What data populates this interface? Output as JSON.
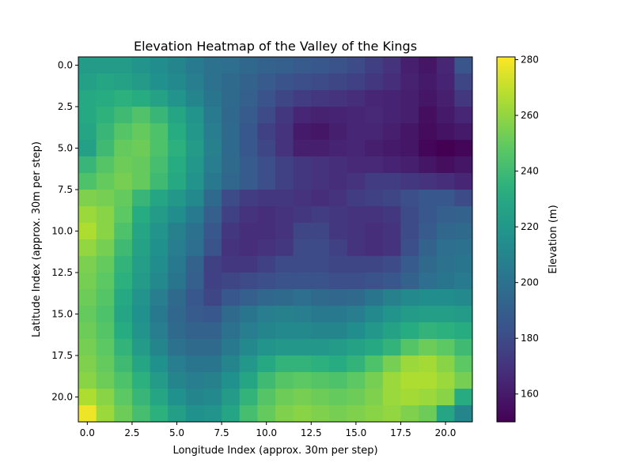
{
  "chart_data": {
    "type": "heatmap",
    "title": "Elevation Heatmap of the Valley of the Kings",
    "xlabel": "Longitude Index (approx. 30m per step)",
    "ylabel": "Latitude Index (approx. 30m per step)",
    "colorbar_label": "Elevation (m)",
    "colormap": "viridis",
    "value_range": [
      150,
      281
    ],
    "x_ticks": [
      0,
      2.5,
      5,
      7.5,
      10,
      12.5,
      15,
      17.5,
      20
    ],
    "x_tick_labels": [
      "0.0",
      "2.5",
      "5.0",
      "7.5",
      "10.0",
      "12.5",
      "15.0",
      "17.5",
      "20.0"
    ],
    "y_ticks": [
      0,
      2.5,
      5,
      7.5,
      10,
      12.5,
      15,
      17.5,
      20
    ],
    "y_tick_labels": [
      "0.0",
      "2.5",
      "5.0",
      "7.5",
      "10.0",
      "12.5",
      "15.0",
      "17.5",
      "20.0"
    ],
    "colorbar_ticks": [
      160,
      180,
      200,
      220,
      240,
      260,
      280
    ],
    "colorbar_tick_labels": [
      "160",
      "180",
      "200",
      "220",
      "240",
      "260",
      "280"
    ],
    "rows": 22,
    "cols": 22,
    "values": [
      [
        222,
        222,
        222,
        218,
        214,
        210,
        205,
        200,
        198,
        195,
        192,
        190,
        188,
        186,
        184,
        180,
        175,
        170,
        162,
        158,
        165,
        185
      ],
      [
        225,
        228,
        226,
        222,
        216,
        212,
        206,
        200,
        196,
        192,
        188,
        184,
        182,
        180,
        178,
        176,
        172,
        168,
        163,
        160,
        164,
        178
      ],
      [
        230,
        232,
        234,
        232,
        226,
        218,
        210,
        202,
        196,
        190,
        184,
        178,
        174,
        172,
        170,
        168,
        165,
        164,
        162,
        158,
        162,
        172
      ],
      [
        230,
        235,
        240,
        245,
        238,
        228,
        218,
        205,
        195,
        188,
        180,
        172,
        165,
        163,
        164,
        165,
        166,
        164,
        162,
        155,
        160,
        165
      ],
      [
        228,
        238,
        246,
        250,
        244,
        232,
        220,
        206,
        196,
        186,
        176,
        170,
        160,
        158,
        162,
        165,
        165,
        162,
        158,
        154,
        157,
        160
      ],
      [
        225,
        240,
        250,
        252,
        244,
        234,
        222,
        208,
        196,
        186,
        178,
        170,
        162,
        162,
        164,
        165,
        162,
        160,
        158,
        152,
        150,
        152
      ],
      [
        238,
        246,
        252,
        250,
        242,
        232,
        220,
        206,
        196,
        188,
        182,
        176,
        172,
        170,
        168,
        166,
        166,
        164,
        162,
        158,
        155,
        158
      ],
      [
        244,
        250,
        254,
        250,
        240,
        230,
        218,
        204,
        194,
        188,
        182,
        176,
        172,
        170,
        168,
        170,
        174,
        174,
        172,
        170,
        168,
        165
      ],
      [
        256,
        254,
        250,
        238,
        228,
        220,
        212,
        196,
        180,
        174,
        172,
        172,
        170,
        168,
        170,
        174,
        176,
        178,
        182,
        186,
        186,
        180
      ],
      [
        262,
        258,
        248,
        232,
        222,
        214,
        205,
        190,
        176,
        170,
        168,
        170,
        172,
        174,
        172,
        170,
        170,
        172,
        180,
        186,
        190,
        192
      ],
      [
        266,
        258,
        244,
        228,
        218,
        208,
        200,
        186,
        172,
        168,
        168,
        170,
        178,
        178,
        172,
        170,
        168,
        170,
        180,
        188,
        194,
        196
      ],
      [
        260,
        254,
        240,
        226,
        216,
        206,
        198,
        184,
        170,
        168,
        170,
        172,
        180,
        180,
        176,
        170,
        168,
        170,
        182,
        192,
        198,
        200
      ],
      [
        255,
        250,
        236,
        224,
        214,
        204,
        192,
        176,
        172,
        172,
        176,
        180,
        180,
        180,
        178,
        178,
        178,
        180,
        188,
        196,
        200,
        202
      ],
      [
        254,
        248,
        234,
        222,
        212,
        202,
        190,
        176,
        178,
        180,
        182,
        184,
        184,
        184,
        182,
        182,
        184,
        186,
        192,
        198,
        202,
        205
      ],
      [
        252,
        246,
        230,
        218,
        206,
        196,
        186,
        178,
        186,
        190,
        194,
        196,
        198,
        196,
        194,
        196,
        202,
        208,
        212,
        214,
        214,
        212
      ],
      [
        250,
        244,
        228,
        216,
        204,
        194,
        188,
        186,
        196,
        202,
        206,
        208,
        206,
        204,
        204,
        206,
        212,
        218,
        222,
        224,
        224,
        222
      ],
      [
        252,
        246,
        232,
        218,
        206,
        196,
        192,
        192,
        200,
        206,
        210,
        212,
        212,
        210,
        210,
        214,
        220,
        226,
        232,
        236,
        234,
        232
      ],
      [
        254,
        248,
        236,
        222,
        210,
        200,
        196,
        196,
        204,
        212,
        218,
        220,
        220,
        220,
        222,
        226,
        230,
        236,
        246,
        252,
        248,
        240
      ],
      [
        256,
        250,
        240,
        228,
        216,
        206,
        202,
        202,
        210,
        220,
        230,
        236,
        236,
        234,
        232,
        236,
        244,
        254,
        262,
        264,
        258,
        248
      ],
      [
        258,
        252,
        244,
        234,
        222,
        210,
        206,
        208,
        216,
        228,
        240,
        246,
        248,
        246,
        244,
        248,
        254,
        262,
        266,
        266,
        262,
        254
      ],
      [
        266,
        258,
        248,
        238,
        228,
        216,
        210,
        212,
        222,
        236,
        246,
        252,
        254,
        252,
        250,
        252,
        256,
        262,
        264,
        262,
        258,
        232
      ],
      [
        278,
        262,
        252,
        242,
        234,
        224,
        216,
        218,
        228,
        242,
        250,
        256,
        258,
        256,
        254,
        256,
        258,
        260,
        256,
        252,
        228,
        210
      ]
    ]
  }
}
